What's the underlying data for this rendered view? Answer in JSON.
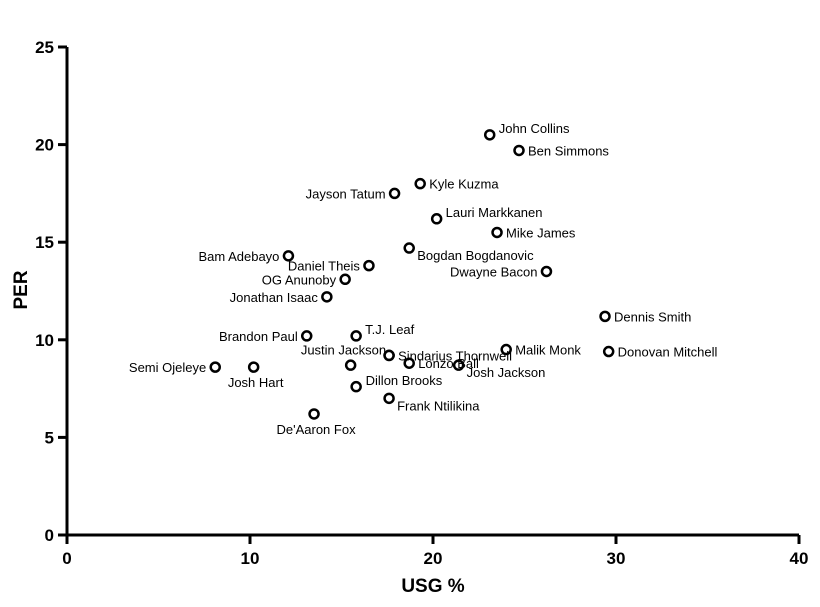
{
  "chart_data": {
    "type": "scatter",
    "xlabel": "USG %",
    "ylabel": "PER",
    "xlim": [
      0,
      40
    ],
    "ylim": [
      0,
      25
    ],
    "xticks": [
      "0",
      "10",
      "20",
      "30",
      "40"
    ],
    "yticks": [
      "0",
      "5",
      "10",
      "15",
      "20",
      "25"
    ],
    "grid": false,
    "points": [
      {
        "label": "John Collins",
        "x": 23.1,
        "y": 20.5,
        "label_pos": "right-up"
      },
      {
        "label": "Ben Simmons",
        "x": 24.7,
        "y": 19.7,
        "label_pos": "right"
      },
      {
        "label": "Kyle Kuzma",
        "x": 19.3,
        "y": 18.0,
        "label_pos": "right"
      },
      {
        "label": "Jayson Tatum",
        "x": 17.9,
        "y": 17.5,
        "label_pos": "left"
      },
      {
        "label": "Lauri Markkanen",
        "x": 20.2,
        "y": 16.2,
        "label_pos": "right-up"
      },
      {
        "label": "Mike James",
        "x": 23.5,
        "y": 15.5,
        "label_pos": "right"
      },
      {
        "label": "Bogdan Bogdanovic",
        "x": 18.7,
        "y": 14.7,
        "label_pos": "right-down"
      },
      {
        "label": "Bam Adebayo",
        "x": 12.1,
        "y": 14.3,
        "label_pos": "left"
      },
      {
        "label": "Daniel Theis",
        "x": 16.5,
        "y": 13.8,
        "label_pos": "left"
      },
      {
        "label": "Dwayne Bacon",
        "x": 26.2,
        "y": 13.5,
        "label_pos": "left"
      },
      {
        "label": "OG Anunoby",
        "x": 15.2,
        "y": 13.1,
        "label_pos": "left"
      },
      {
        "label": "Jonathan Isaac",
        "x": 14.2,
        "y": 12.2,
        "label_pos": "left"
      },
      {
        "label": "Dennis Smith",
        "x": 29.4,
        "y": 11.2,
        "label_pos": "right"
      },
      {
        "label": "Brandon Paul",
        "x": 13.1,
        "y": 10.2,
        "label_pos": "left"
      },
      {
        "label": "T.J. Leaf",
        "x": 15.8,
        "y": 10.2,
        "label_pos": "right-up"
      },
      {
        "label": "Malik Monk",
        "x": 24.0,
        "y": 9.5,
        "label_pos": "right"
      },
      {
        "label": "Donovan Mitchell",
        "x": 29.6,
        "y": 9.4,
        "label_pos": "right"
      },
      {
        "label": "Justin Jackson",
        "x": 17.6,
        "y": 9.2,
        "label_pos": "left-up"
      },
      {
        "label": "Sindarius Thornwell",
        "x": 17.6,
        "y": 9.2,
        "label_pos": "right"
      },
      {
        "label": "Lonzo Ball",
        "x": 18.7,
        "y": 8.8,
        "label_pos": "right"
      },
      {
        "label": "Josh Jackson",
        "x": 21.4,
        "y": 8.7,
        "label_pos": "right-down"
      },
      {
        "label": "Semi Ojeleye",
        "x": 8.1,
        "y": 8.6,
        "label_pos": "left"
      },
      {
        "label": "Josh Hart",
        "x": 10.2,
        "y": 8.6,
        "label_pos": "below"
      },
      {
        "label": "Dillon Brooks",
        "x": 15.5,
        "y": 8.7,
        "label_pos": "below-right"
      },
      {
        "label": "Frank Ntilikina",
        "x": 17.6,
        "y": 7.0,
        "label_pos": "right-down"
      },
      {
        "label": "De'Aaron Fox",
        "x": 13.5,
        "y": 6.2,
        "label_pos": "below"
      },
      {
        "label": "Dillon Brooks point",
        "x": 15.8,
        "y": 7.6,
        "label_pos": "none"
      }
    ]
  }
}
